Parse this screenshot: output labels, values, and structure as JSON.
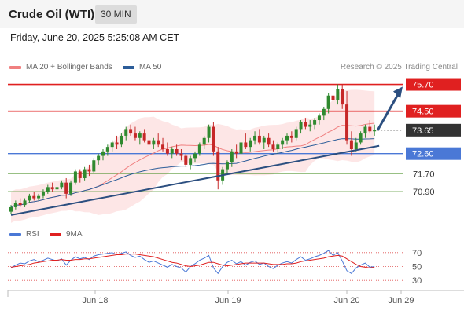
{
  "header": {
    "instrument": "Crude Oil (WTI)",
    "interval": "30 MIN",
    "datetime": "Friday, June 20, 2025 5:25:08 AM CET"
  },
  "legend": {
    "ma20": "MA 20 + Bollinger Bands",
    "ma50": "MA 50",
    "credit": "Research © 2025 Trading Central"
  },
  "rsi_legend": {
    "rsi": "RSI",
    "rsi_ma": "9MA"
  },
  "colors": {
    "candle_up": "#2f8a2f",
    "candle_down": "#c62828",
    "resistance": "#e02020",
    "support": "#4a78d6",
    "target_line": "#5a9a3a",
    "ma20": "#f08080",
    "ma50": "#2c5d99",
    "bollinger_fill": "#fde2e2",
    "trendline": "#2c4f80",
    "last_price_tag": "#333333",
    "rsi_line": "#4a78d6",
    "rsi_ma_line": "#e02020"
  },
  "chart_data": [
    {
      "type": "candlestick",
      "title": "Crude Oil (WTI)",
      "interval": "30 MIN",
      "x_tick_labels": [
        "Jun 18",
        "Jun 19",
        "Jun 20",
        "Jun 29"
      ],
      "y_range": [
        69.6,
        76.0
      ],
      "candles_ohlc": [
        [
          70.0,
          70.3,
          69.9,
          70.2
        ],
        [
          70.2,
          70.5,
          70.1,
          70.4
        ],
        [
          70.4,
          70.6,
          70.2,
          70.3
        ],
        [
          70.3,
          70.6,
          70.2,
          70.5
        ],
        [
          70.5,
          70.8,
          70.4,
          70.7
        ],
        [
          70.7,
          70.9,
          70.5,
          70.6
        ],
        [
          70.6,
          70.8,
          70.5,
          70.7
        ],
        [
          70.7,
          71.0,
          70.6,
          70.9
        ],
        [
          70.9,
          71.2,
          70.8,
          71.1
        ],
        [
          71.1,
          71.3,
          70.9,
          71.0
        ],
        [
          71.0,
          71.2,
          70.9,
          71.1
        ],
        [
          71.1,
          71.4,
          71.0,
          71.3
        ],
        [
          71.3,
          71.5,
          70.6,
          70.8
        ],
        [
          70.8,
          71.4,
          70.7,
          71.3
        ],
        [
          71.3,
          71.9,
          71.2,
          71.8
        ],
        [
          71.8,
          71.9,
          71.3,
          71.5
        ],
        [
          71.5,
          72.0,
          71.4,
          71.9
        ],
        [
          71.9,
          72.1,
          71.6,
          71.8
        ],
        [
          71.8,
          72.4,
          71.7,
          72.3
        ],
        [
          72.3,
          72.6,
          72.1,
          72.5
        ],
        [
          72.5,
          72.8,
          72.3,
          72.7
        ],
        [
          72.7,
          73.0,
          72.5,
          72.9
        ],
        [
          72.9,
          73.2,
          72.7,
          73.1
        ],
        [
          73.1,
          73.4,
          72.8,
          73.0
        ],
        [
          73.0,
          73.5,
          72.9,
          73.4
        ],
        [
          73.4,
          73.8,
          73.2,
          73.7
        ],
        [
          73.7,
          73.9,
          73.4,
          73.5
        ],
        [
          73.5,
          73.8,
          73.2,
          73.3
        ],
        [
          73.3,
          73.6,
          73.0,
          73.5
        ],
        [
          73.5,
          73.7,
          73.1,
          73.2
        ],
        [
          73.2,
          73.4,
          72.9,
          73.0
        ],
        [
          73.0,
          73.3,
          72.8,
          73.2
        ],
        [
          73.2,
          73.5,
          72.9,
          73.0
        ],
        [
          73.0,
          73.3,
          72.7,
          72.8
        ],
        [
          72.8,
          73.1,
          72.5,
          72.6
        ],
        [
          72.6,
          72.9,
          72.4,
          72.8
        ],
        [
          72.8,
          73.0,
          72.5,
          72.6
        ],
        [
          72.6,
          72.8,
          72.3,
          72.5
        ],
        [
          72.5,
          72.6,
          72.0,
          72.1
        ],
        [
          72.1,
          72.5,
          71.9,
          72.4
        ],
        [
          72.4,
          72.7,
          72.2,
          72.6
        ],
        [
          72.6,
          73.1,
          72.5,
          73.0
        ],
        [
          73.0,
          73.4,
          72.8,
          73.3
        ],
        [
          73.3,
          73.9,
          73.1,
          73.8
        ],
        [
          73.8,
          74.0,
          72.5,
          72.7
        ],
        [
          72.7,
          72.9,
          71.0,
          71.4
        ],
        [
          71.4,
          72.0,
          71.2,
          71.9
        ],
        [
          71.9,
          72.3,
          71.7,
          72.2
        ],
        [
          72.2,
          72.8,
          72.0,
          72.7
        ],
        [
          72.7,
          73.0,
          72.4,
          72.6
        ],
        [
          72.6,
          73.2,
          72.5,
          73.1
        ],
        [
          73.1,
          73.5,
          72.8,
          72.9
        ],
        [
          72.9,
          73.3,
          72.7,
          73.2
        ],
        [
          73.2,
          73.6,
          73.0,
          73.4
        ],
        [
          73.4,
          73.7,
          73.0,
          73.1
        ],
        [
          73.1,
          73.4,
          72.8,
          73.3
        ],
        [
          73.3,
          73.5,
          72.9,
          73.0
        ],
        [
          73.0,
          73.2,
          72.7,
          72.8
        ],
        [
          72.8,
          73.1,
          72.6,
          73.0
        ],
        [
          73.0,
          73.3,
          72.8,
          73.2
        ],
        [
          73.2,
          73.5,
          73.0,
          73.4
        ],
        [
          73.4,
          73.6,
          73.1,
          73.3
        ],
        [
          73.3,
          73.8,
          73.2,
          73.7
        ],
        [
          73.7,
          74.1,
          73.5,
          74.0
        ],
        [
          74.0,
          74.2,
          73.7,
          73.8
        ],
        [
          73.8,
          74.1,
          73.6,
          73.9
        ],
        [
          73.9,
          74.2,
          73.7,
          74.1
        ],
        [
          74.1,
          74.4,
          73.9,
          74.3
        ],
        [
          74.3,
          74.7,
          74.1,
          74.6
        ],
        [
          74.6,
          75.3,
          74.4,
          75.2
        ],
        [
          75.2,
          75.6,
          74.9,
          75.0
        ],
        [
          75.0,
          75.7,
          74.8,
          75.5
        ],
        [
          75.5,
          75.7,
          74.6,
          74.8
        ],
        [
          74.8,
          75.4,
          73.0,
          73.2
        ],
        [
          73.2,
          73.6,
          72.5,
          72.8
        ],
        [
          72.8,
          73.3,
          72.7,
          73.1
        ],
        [
          73.1,
          73.6,
          73.0,
          73.5
        ],
        [
          73.5,
          73.9,
          73.3,
          73.8
        ],
        [
          73.8,
          74.1,
          73.5,
          73.6
        ],
        [
          73.6,
          73.9,
          73.4,
          73.65
        ]
      ],
      "levels": [
        {
          "value": 75.7,
          "label": "75.70",
          "kind": "resistance",
          "tag": true
        },
        {
          "value": 74.5,
          "label": "74.50",
          "kind": "resistance",
          "tag": true
        },
        {
          "value": 73.65,
          "label": "73.65",
          "kind": "last_price",
          "tag": true
        },
        {
          "value": 72.6,
          "label": "72.60",
          "kind": "support",
          "tag": true
        },
        {
          "value": 71.7,
          "label": "71.70",
          "kind": "target",
          "tag": false
        },
        {
          "value": 70.9,
          "label": "70.90",
          "kind": "target",
          "tag": false
        }
      ],
      "trendline": {
        "from_index": 0,
        "from_value": 69.85,
        "to_index": 79,
        "to_value": 72.95
      },
      "arrow": {
        "from_value": 73.65,
        "to_value": 75.6
      }
    },
    {
      "type": "line",
      "title": "RSI",
      "y_range": [
        20,
        80
      ],
      "y_ticks": [
        30,
        50,
        70
      ],
      "series": [
        {
          "name": "RSI",
          "values": [
            48,
            52,
            55,
            54,
            58,
            60,
            57,
            59,
            62,
            60,
            58,
            61,
            52,
            59,
            64,
            61,
            63,
            60,
            65,
            67,
            68,
            69,
            70,
            67,
            69,
            71,
            66,
            63,
            65,
            60,
            56,
            58,
            55,
            52,
            49,
            53,
            50,
            48,
            42,
            50,
            54,
            59,
            62,
            66,
            48,
            40,
            50,
            56,
            59,
            54,
            57,
            52,
            56,
            58,
            53,
            55,
            50,
            47,
            52,
            55,
            57,
            55,
            60,
            64,
            59,
            61,
            64,
            66,
            69,
            73,
            66,
            70,
            58,
            44,
            40,
            48,
            52,
            55,
            49,
            50
          ]
        },
        {
          "name": "9MA",
          "values": [
            49,
            50,
            51,
            52,
            53,
            55,
            56,
            57,
            58,
            59,
            59,
            60,
            59,
            59,
            60,
            60,
            61,
            61,
            62,
            63,
            64,
            65,
            66,
            67,
            67,
            68,
            68,
            68,
            67,
            66,
            65,
            64,
            62,
            60,
            58,
            56,
            55,
            53,
            51,
            50,
            51,
            52,
            54,
            56,
            56,
            54,
            52,
            51,
            52,
            53,
            54,
            55,
            55,
            55,
            55,
            55,
            54,
            53,
            53,
            53,
            54,
            54,
            55,
            57,
            58,
            59,
            60,
            61,
            62,
            64,
            65,
            66,
            65,
            61,
            57,
            53,
            50,
            49,
            48,
            49
          ]
        }
      ]
    }
  ]
}
